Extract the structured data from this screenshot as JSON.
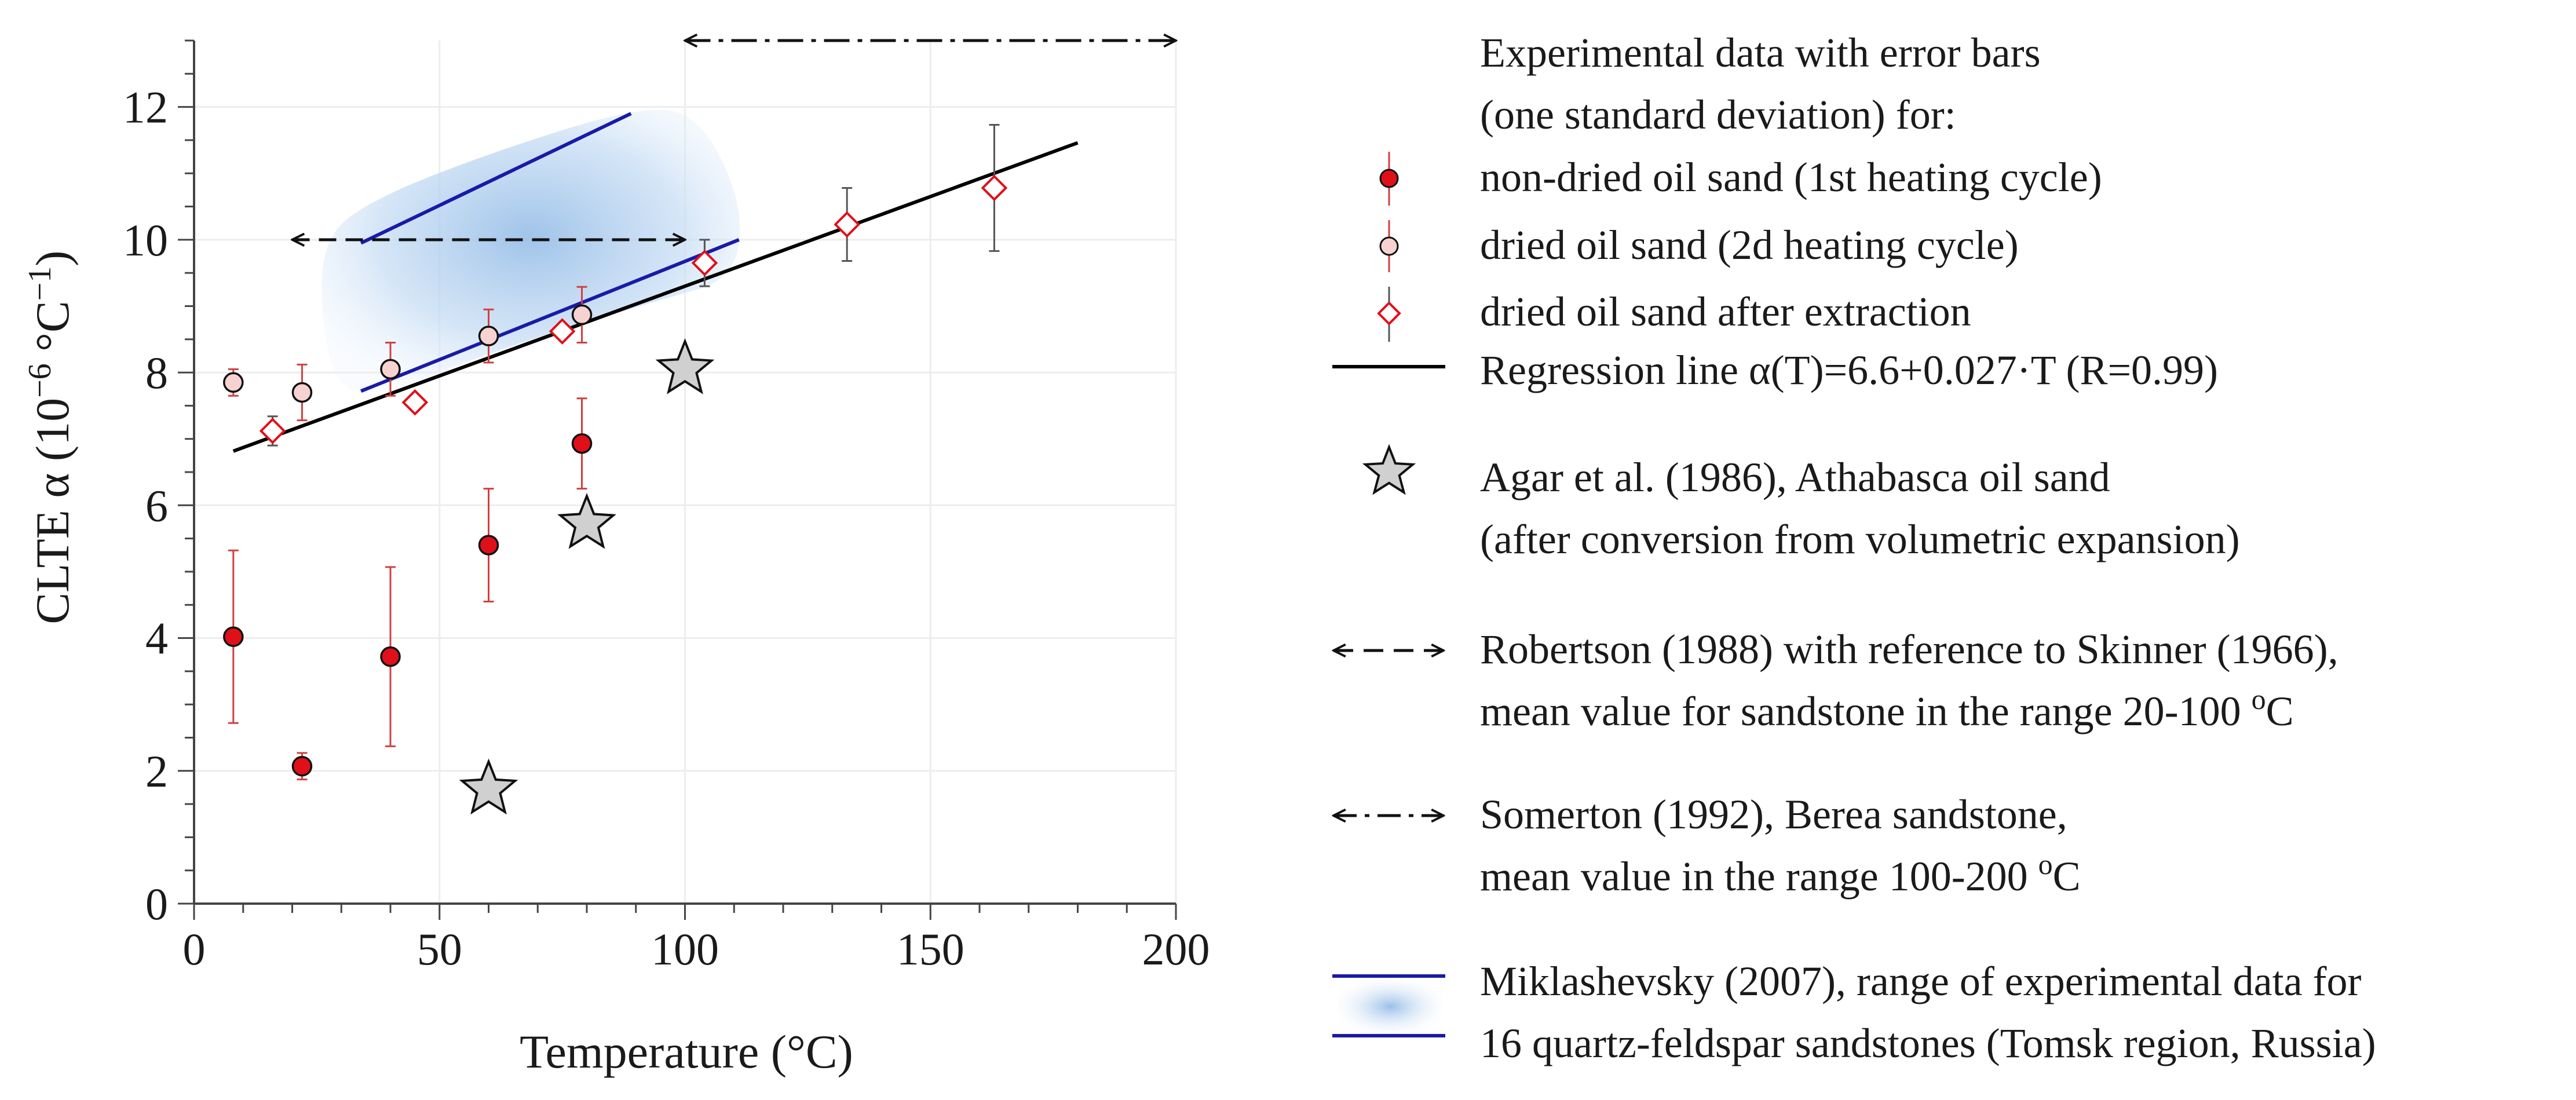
{
  "chart_data": {
    "type": "scatter",
    "xlabel": "Temperature (°C)",
    "ylabel_main": "CLTE α  (10",
    "ylabel_sup1": "−6",
    "ylabel_unit": " °C",
    "ylabel_sup2": "−1",
    "ylabel_close": ")",
    "xlim": [
      0,
      200
    ],
    "ylim": [
      0,
      13
    ],
    "xticks": [
      0,
      50,
      100,
      150,
      200
    ],
    "yticks": [
      0,
      2,
      4,
      6,
      8,
      10,
      12
    ],
    "grid": true,
    "series": [
      {
        "name": "non-dried oil sand (1st heating cycle)",
        "marker": "circle",
        "fill": "#e0101a",
        "error_color": "#d04040",
        "points": [
          {
            "x": 8,
            "y": 4.02,
            "err": 1.3
          },
          {
            "x": 22,
            "y": 2.07,
            "err": 0.2
          },
          {
            "x": 40,
            "y": 3.72,
            "err": 1.35
          },
          {
            "x": 60,
            "y": 5.4,
            "err": 0.85
          },
          {
            "x": 79,
            "y": 6.93,
            "err": 0.68
          }
        ]
      },
      {
        "name": "dried oil sand (2d heating cycle)",
        "marker": "circle",
        "fill": "#f6d3d0",
        "error_color": "#d04040",
        "points": [
          {
            "x": 8,
            "y": 7.85,
            "err": 0.2
          },
          {
            "x": 22,
            "y": 7.7,
            "err": 0.42
          },
          {
            "x": 40,
            "y": 8.05,
            "err": 0.4
          },
          {
            "x": 60,
            "y": 8.55,
            "err": 0.4
          },
          {
            "x": 79,
            "y": 8.87,
            "err": 0.42
          }
        ]
      },
      {
        "name": "dried oil sand  after extraction",
        "marker": "diamond",
        "fill": "#ffffff",
        "stroke": "#e0101a",
        "error_color": "#555555",
        "points": [
          {
            "x": 16,
            "y": 7.12,
            "err": 0.22
          },
          {
            "x": 45,
            "y": 7.55,
            "err": 0
          },
          {
            "x": 75,
            "y": 8.62,
            "err": 0
          },
          {
            "x": 104,
            "y": 9.65,
            "err": 0.35
          },
          {
            "x": 133,
            "y": 10.23,
            "err": 0.55
          },
          {
            "x": 163,
            "y": 10.78,
            "err": 0.95
          }
        ]
      }
    ],
    "regression": {
      "label": "Regression line α(T)=6.6+0.027·T (R=0.99)",
      "intercept": 6.6,
      "slope": 0.027,
      "x_range": [
        8,
        180
      ]
    },
    "agar_stars": {
      "label1": "Agar et al. (1986), Athabasca oil sand",
      "label2": "(after conversion from volumetric expansion)",
      "points": [
        {
          "x": 60,
          "y": 1.72
        },
        {
          "x": 80,
          "y": 5.72
        },
        {
          "x": 100,
          "y": 8.05
        }
      ]
    },
    "robertson": {
      "label1": "Robertson (1988) with reference to Skinner (1966),",
      "label2": "mean value for sandstone in the range 20-100 ",
      "label2_sup": "o",
      "label2_end": "C",
      "x_range": [
        20,
        100
      ],
      "y": 10.0
    },
    "somerton": {
      "label1": "Somerton (1992), Berea sandstone,",
      "label2": "mean value in the range 100-200 ",
      "label2_sup": "o",
      "label2_end": "C",
      "x_range": [
        100,
        200
      ],
      "y": 13.0
    },
    "miklashevsky": {
      "label1": "Miklashevsky (2007), range of experimental data for",
      "label2": "16 quartz-feldspar sandstones (Tomsk region, Russia)",
      "upper_line": [
        [
          34,
          9.95
        ],
        [
          89,
          11.9
        ]
      ],
      "lower_line": [
        [
          34,
          7.72
        ],
        [
          111,
          10.0
        ]
      ]
    },
    "legend": {
      "header1": "Experimental data with error bars",
      "header2": "(one standard  deviation) for:",
      "placement": "right"
    },
    "colors": {
      "line_blue": "#1a1aa8",
      "band_blue": "#a8c8ec",
      "red": "#e0101a",
      "pink": "#f6d3d0",
      "star": "#d0d0d0"
    }
  }
}
